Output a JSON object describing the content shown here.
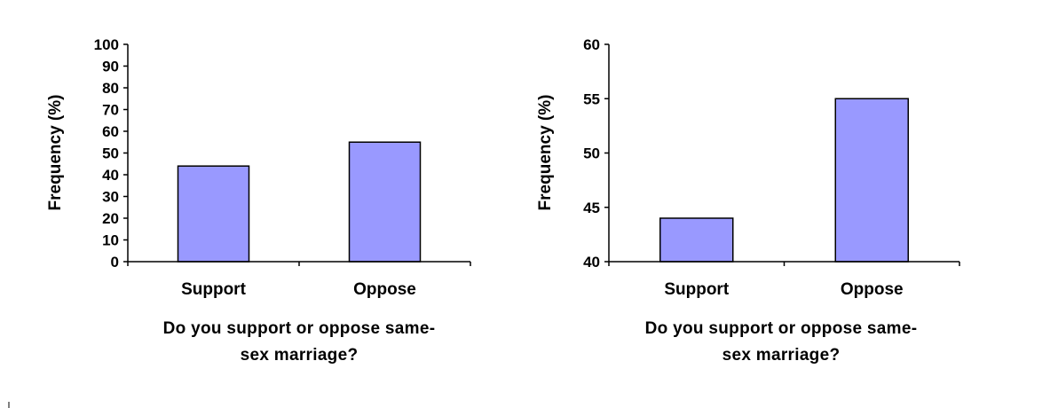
{
  "colors": {
    "bar_fill": "#9999FF",
    "bar_stroke": "#000000",
    "axis": "#000000"
  },
  "chart_data": [
    {
      "type": "bar",
      "categories": [
        "Support",
        "Oppose"
      ],
      "values": [
        44,
        55
      ],
      "ylim": [
        0,
        100
      ],
      "yticks": [
        0,
        10,
        20,
        30,
        40,
        50,
        60,
        70,
        80,
        90,
        100
      ],
      "ylabel": "Frequency (%)",
      "xlabel_lines": [
        "Do you support or oppose same-",
        "sex marriage?"
      ],
      "grid": false,
      "legend": "none"
    },
    {
      "type": "bar",
      "categories": [
        "Support",
        "Oppose"
      ],
      "values": [
        44,
        55
      ],
      "ylim": [
        40,
        60
      ],
      "yticks": [
        40,
        45,
        50,
        55,
        60
      ],
      "ylabel": "Frequency (%)",
      "xlabel_lines": [
        "Do you support or oppose same-",
        "sex marriage?"
      ],
      "grid": false,
      "legend": "none"
    }
  ]
}
